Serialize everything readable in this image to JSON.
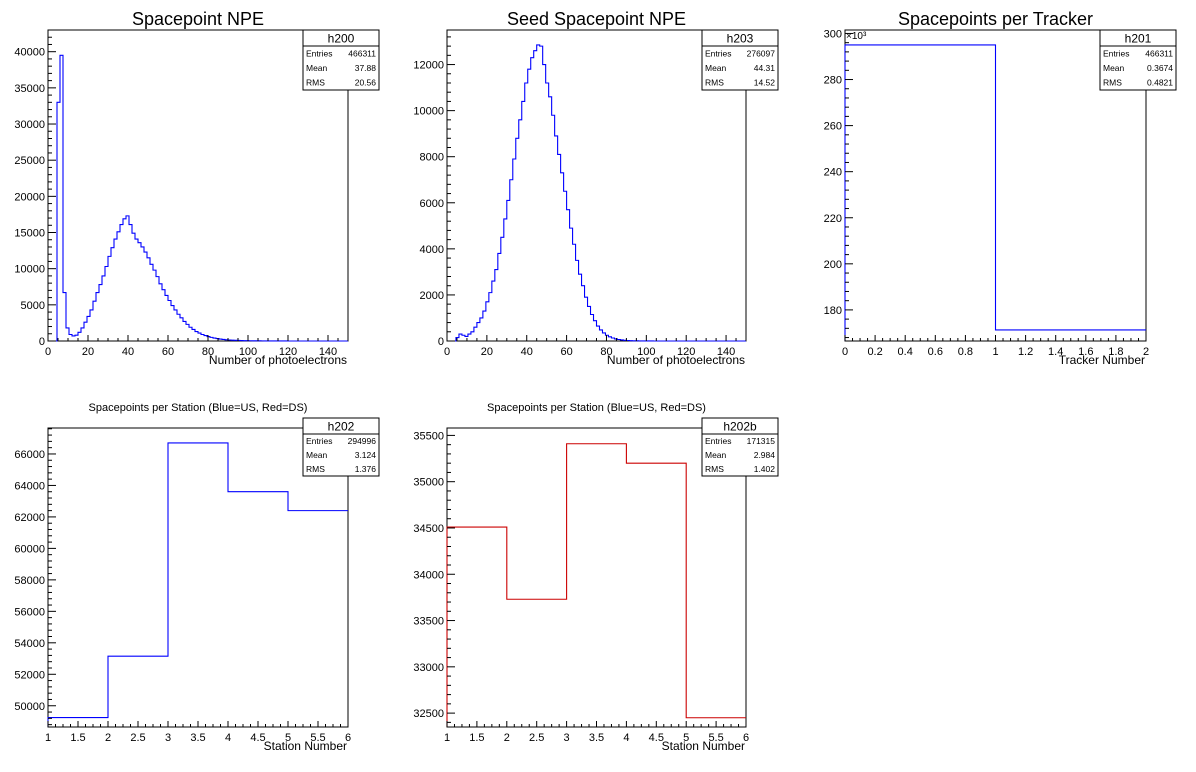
{
  "chart_data": [
    {
      "type": "histogram",
      "title": "Spacepoint NPE",
      "stats": {
        "name": "h200",
        "entries": "466311",
        "mean": "37.88",
        "rms": "20.56"
      },
      "xlabel": "Number of photoelectrons",
      "ylabel": "",
      "xlim": [
        0,
        150
      ],
      "ylim": [
        0,
        43000
      ],
      "xticks": [
        0,
        20,
        40,
        60,
        80,
        100,
        120,
        140
      ],
      "yticks": [
        0,
        5000,
        10000,
        15000,
        20000,
        25000,
        30000,
        35000,
        40000
      ],
      "series": [
        {
          "color": "#0000ff",
          "bin_width": 1.5,
          "x_start": 0,
          "values": [
            0,
            0,
            0,
            33000,
            39500,
            6700,
            1800,
            900,
            700,
            800,
            1200,
            1800,
            2600,
            3400,
            4300,
            5500,
            6700,
            7800,
            9000,
            10300,
            11700,
            12900,
            14100,
            15100,
            16100,
            16900,
            17300,
            16100,
            14900,
            14100,
            13600,
            13000,
            12300,
            11500,
            10600,
            9800,
            8900,
            7900,
            7100,
            6300,
            5600,
            4900,
            4300,
            3700,
            3200,
            2700,
            2300,
            1900,
            1600,
            1300,
            1100,
            900,
            750,
            620,
            500,
            400,
            330,
            270,
            210,
            170,
            140,
            110,
            90,
            75,
            60,
            50,
            40,
            35,
            30,
            25,
            20,
            18,
            15,
            12,
            10,
            8,
            6,
            5,
            4,
            3,
            2,
            2,
            1,
            1,
            1,
            0,
            0,
            0,
            0,
            0,
            0,
            0,
            0,
            0,
            0,
            0,
            0,
            0,
            0,
            0
          ]
        }
      ]
    },
    {
      "type": "histogram",
      "title": "Seed Spacepoint NPE",
      "stats": {
        "name": "h203",
        "entries": "276097",
        "mean": "44.31",
        "rms": "14.52"
      },
      "xlabel": "Number of photoelectrons",
      "ylabel": "",
      "xlim": [
        0,
        150
      ],
      "ylim": [
        0,
        13500
      ],
      "xticks": [
        0,
        20,
        40,
        60,
        80,
        100,
        120,
        140
      ],
      "yticks": [
        0,
        2000,
        4000,
        6000,
        8000,
        10000,
        12000
      ],
      "series": [
        {
          "color": "#0000ff",
          "bin_width": 1.5,
          "x_start": 0,
          "values": [
            0,
            0,
            0,
            150,
            300,
            250,
            200,
            300,
            400,
            600,
            800,
            1000,
            1300,
            1700,
            2100,
            2600,
            3100,
            3800,
            4500,
            5300,
            6100,
            7000,
            7900,
            8800,
            9600,
            10400,
            11200,
            11800,
            12300,
            12600,
            12850,
            12800,
            12000,
            11200,
            10600,
            9800,
            8900,
            8100,
            7300,
            6500,
            5700,
            4900,
            4200,
            3500,
            2900,
            2400,
            1900,
            1500,
            1150,
            880,
            650,
            480,
            350,
            250,
            180,
            130,
            90,
            65,
            45,
            30,
            22,
            15,
            10,
            7,
            5,
            3,
            2,
            1,
            1,
            0,
            0,
            0,
            0,
            0,
            0,
            0,
            0,
            0,
            0,
            0,
            0,
            0,
            0,
            0,
            0,
            0,
            0,
            0,
            0,
            0,
            0,
            0,
            0,
            0,
            0,
            0,
            0,
            0,
            0,
            0
          ]
        }
      ]
    },
    {
      "type": "histogram",
      "title": "Spacepoints per Tracker",
      "stats": {
        "name": "h201",
        "entries": "466311",
        "mean": "0.3674",
        "rms": "0.4821"
      },
      "xlabel": "Tracker Number",
      "ylabel": "",
      "ymultiplier": "×10³",
      "xlim": [
        0,
        2
      ],
      "ylim": [
        166.5,
        301.5
      ],
      "xticks": [
        0,
        0.2,
        0.4,
        0.6,
        0.8,
        1,
        1.2,
        1.4,
        1.6,
        1.8,
        2
      ],
      "yticks": [
        180,
        200,
        220,
        240,
        260,
        280,
        300
      ],
      "series": [
        {
          "color": "#0000ff",
          "bin_width": 1,
          "x_start": 0,
          "values": [
            294.996,
            171.315
          ]
        }
      ]
    },
    {
      "type": "histogram",
      "title": "Spacepoints per Station (Blue=US, Red=DS)",
      "stats": {
        "name": "h202",
        "entries": "294996",
        "mean": "3.124",
        "rms": "1.376"
      },
      "xlabel": "Station Number",
      "ylabel": "",
      "xlim": [
        1,
        6
      ],
      "ylim": [
        48650,
        67650
      ],
      "xticks": [
        1,
        1.5,
        2,
        2.5,
        3,
        3.5,
        4,
        4.5,
        5,
        5.5,
        6
      ],
      "yticks": [
        50000,
        52000,
        54000,
        56000,
        58000,
        60000,
        62000,
        64000,
        66000
      ],
      "series": [
        {
          "color": "#0000ff",
          "bin_width": 1,
          "x_start": 1,
          "values": [
            49250,
            53150,
            66700,
            63600,
            62400
          ]
        }
      ]
    },
    {
      "type": "histogram",
      "title": "Spacepoints per Station (Blue=US, Red=DS)",
      "stats": {
        "name": "h202b",
        "entries": "171315",
        "mean": "2.984",
        "rms": "1.402"
      },
      "xlabel": "Station Number",
      "ylabel": "",
      "xlim": [
        1,
        6
      ],
      "ylim": [
        32350,
        35580
      ],
      "xticks": [
        1,
        1.5,
        2,
        2.5,
        3,
        3.5,
        4,
        4.5,
        5,
        5.5,
        6
      ],
      "yticks": [
        32500,
        33000,
        33500,
        34000,
        34500,
        35000,
        35500
      ],
      "series": [
        {
          "color": "#cc0000",
          "bin_width": 1,
          "x_start": 1,
          "values": [
            34510,
            33730,
            35410,
            35200,
            32450
          ]
        }
      ]
    }
  ]
}
